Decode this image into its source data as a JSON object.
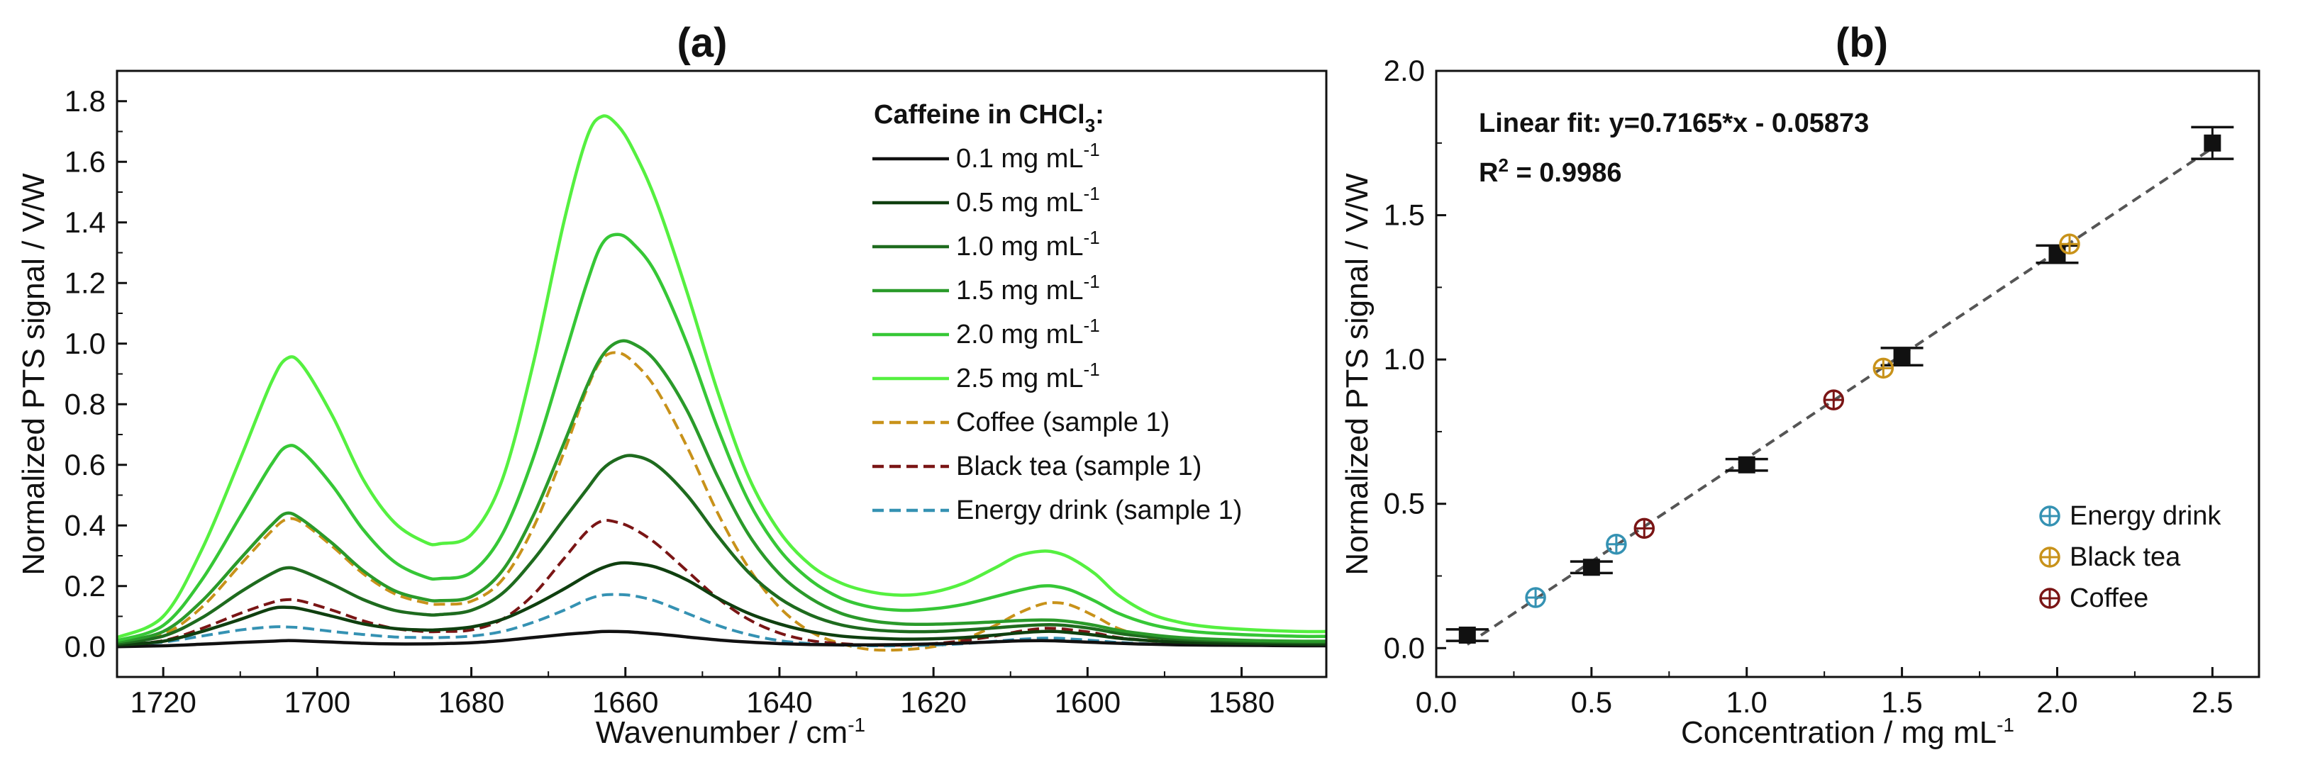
{
  "colors": {
    "c0_1": "#111111",
    "c0_5": "#0f3f0f",
    "c1_0": "#1e6b1e",
    "c1_5": "#2a9a2a",
    "c2_0": "#36c736",
    "c2_5": "#55f040",
    "coffee": "#c8921a",
    "black_tea": "#7a1515",
    "energy": "#3592b3",
    "axis": "#111111",
    "fit": "#555555"
  },
  "chart_data": [
    {
      "panel": "(a)",
      "type": "line",
      "title": "(a)",
      "xlabel": "Wavenumber / cm",
      "xlabel_sup": "-1",
      "ylabel": "Normalized PTS signal / V/W",
      "xlim": [
        1726,
        1569
      ],
      "ylim": [
        -0.1,
        1.9
      ],
      "x_reversed": true,
      "xticks": [
        1720,
        1700,
        1680,
        1660,
        1640,
        1620,
        1600,
        1580
      ],
      "yticks": [
        0.0,
        0.2,
        0.4,
        0.6,
        0.8,
        1.0,
        1.2,
        1.4,
        1.6,
        1.8
      ],
      "legend_title": "Caffeine in CHCl",
      "legend_title_sub": "3",
      "legend_title_tail": ":",
      "legend_position": "top-right",
      "x": [
        1726,
        1720,
        1715,
        1710,
        1706,
        1704,
        1702,
        1698,
        1694,
        1690,
        1686,
        1684,
        1680,
        1676,
        1672,
        1668,
        1665,
        1663,
        1661,
        1659,
        1656,
        1652,
        1648,
        1644,
        1640,
        1636,
        1632,
        1628,
        1624,
        1620,
        1616,
        1612,
        1609,
        1606,
        1604,
        1602,
        1599,
        1596,
        1592,
        1588,
        1584,
        1578,
        1572,
        1569
      ],
      "series": [
        {
          "name": "0.1 mg mL",
          "sup": "-1",
          "style": "solid",
          "color_key": "c0_1",
          "values": [
            0.0,
            0.003,
            0.008,
            0.014,
            0.018,
            0.02,
            0.019,
            0.015,
            0.011,
            0.009,
            0.009,
            0.01,
            0.013,
            0.02,
            0.03,
            0.04,
            0.046,
            0.05,
            0.05,
            0.048,
            0.042,
            0.032,
            0.022,
            0.015,
            0.01,
            0.007,
            0.006,
            0.006,
            0.007,
            0.009,
            0.012,
            0.016,
            0.019,
            0.02,
            0.019,
            0.017,
            0.014,
            0.011,
            0.008,
            0.006,
            0.005,
            0.004,
            0.003,
            0.003
          ]
        },
        {
          "name": "0.5 mg mL",
          "sup": "-1",
          "style": "solid",
          "color_key": "c0_5",
          "values": [
            0.005,
            0.018,
            0.05,
            0.09,
            0.125,
            0.13,
            0.124,
            0.1,
            0.075,
            0.06,
            0.055,
            0.056,
            0.065,
            0.09,
            0.135,
            0.19,
            0.235,
            0.26,
            0.275,
            0.275,
            0.262,
            0.22,
            0.16,
            0.11,
            0.075,
            0.05,
            0.035,
            0.028,
            0.025,
            0.026,
            0.03,
            0.038,
            0.045,
            0.05,
            0.05,
            0.046,
            0.038,
            0.028,
            0.02,
            0.015,
            0.012,
            0.01,
            0.008,
            0.008
          ]
        },
        {
          "name": "1.0 mg mL",
          "sup": "-1",
          "style": "solid",
          "color_key": "c1_0",
          "values": [
            0.01,
            0.035,
            0.095,
            0.18,
            0.24,
            0.26,
            0.25,
            0.205,
            0.155,
            0.12,
            0.106,
            0.106,
            0.12,
            0.175,
            0.285,
            0.42,
            0.52,
            0.585,
            0.62,
            0.63,
            0.6,
            0.5,
            0.365,
            0.245,
            0.16,
            0.105,
            0.072,
            0.056,
            0.05,
            0.05,
            0.055,
            0.062,
            0.068,
            0.072,
            0.072,
            0.068,
            0.058,
            0.044,
            0.032,
            0.024,
            0.02,
            0.016,
            0.014,
            0.014
          ]
        },
        {
          "name": "1.5 mg mL",
          "sup": "-1",
          "style": "solid",
          "color_key": "c1_5",
          "values": [
            0.015,
            0.05,
            0.15,
            0.29,
            0.4,
            0.44,
            0.42,
            0.34,
            0.25,
            0.185,
            0.156,
            0.152,
            0.165,
            0.25,
            0.43,
            0.67,
            0.86,
            0.96,
            1.005,
            1.0,
            0.94,
            0.78,
            0.56,
            0.37,
            0.24,
            0.16,
            0.11,
            0.085,
            0.075,
            0.074,
            0.077,
            0.082,
            0.086,
            0.088,
            0.087,
            0.082,
            0.07,
            0.054,
            0.04,
            0.03,
            0.025,
            0.02,
            0.018,
            0.018
          ]
        },
        {
          "name": "2.0 mg mL",
          "sup": "-1",
          "style": "solid",
          "color_key": "c2_0",
          "values": [
            0.02,
            0.07,
            0.22,
            0.43,
            0.6,
            0.66,
            0.645,
            0.53,
            0.385,
            0.28,
            0.23,
            0.225,
            0.245,
            0.37,
            0.62,
            0.95,
            1.2,
            1.33,
            1.36,
            1.33,
            1.23,
            1.0,
            0.72,
            0.48,
            0.32,
            0.22,
            0.16,
            0.13,
            0.12,
            0.125,
            0.14,
            0.165,
            0.185,
            0.2,
            0.198,
            0.185,
            0.15,
            0.11,
            0.075,
            0.055,
            0.045,
            0.038,
            0.034,
            0.034
          ]
        },
        {
          "name": "2.5 mg mL",
          "sup": "-1",
          "style": "solid",
          "color_key": "c2_5",
          "values": [
            0.03,
            0.1,
            0.32,
            0.62,
            0.87,
            0.95,
            0.93,
            0.76,
            0.55,
            0.41,
            0.345,
            0.34,
            0.37,
            0.55,
            0.93,
            1.4,
            1.68,
            1.75,
            1.72,
            1.64,
            1.47,
            1.17,
            0.84,
            0.56,
            0.38,
            0.27,
            0.21,
            0.18,
            0.17,
            0.18,
            0.21,
            0.26,
            0.3,
            0.315,
            0.31,
            0.29,
            0.24,
            0.17,
            0.11,
            0.08,
            0.065,
            0.055,
            0.05,
            0.05
          ]
        },
        {
          "name": "Coffee (sample 1)",
          "style": "dashed",
          "color_key": "coffee",
          "values": [
            0.01,
            0.04,
            0.13,
            0.27,
            0.38,
            0.42,
            0.41,
            0.33,
            0.24,
            0.175,
            0.145,
            0.14,
            0.15,
            0.22,
            0.39,
            0.64,
            0.85,
            0.95,
            0.97,
            0.94,
            0.85,
            0.66,
            0.44,
            0.26,
            0.13,
            0.05,
            0.01,
            -0.01,
            -0.01,
            0.0,
            0.025,
            0.07,
            0.11,
            0.14,
            0.145,
            0.135,
            0.1,
            0.06,
            0.03,
            0.015,
            0.01,
            0.008,
            0.005,
            0.005
          ]
        },
        {
          "name": "Black tea (sample 1)",
          "style": "dashed",
          "color_key": "black_tea",
          "values": [
            0.005,
            0.02,
            0.06,
            0.11,
            0.145,
            0.155,
            0.15,
            0.12,
            0.085,
            0.06,
            0.05,
            0.05,
            0.055,
            0.09,
            0.17,
            0.29,
            0.38,
            0.415,
            0.41,
            0.39,
            0.34,
            0.25,
            0.16,
            0.09,
            0.045,
            0.02,
            0.01,
            0.005,
            0.005,
            0.01,
            0.02,
            0.035,
            0.05,
            0.06,
            0.06,
            0.055,
            0.045,
            0.03,
            0.02,
            0.01,
            0.008,
            0.006,
            0.004,
            0.004
          ]
        },
        {
          "name": "Energy drink (sample 1)",
          "style": "dashed",
          "color_key": "energy",
          "values": [
            0.005,
            0.015,
            0.035,
            0.055,
            0.065,
            0.065,
            0.062,
            0.05,
            0.04,
            0.032,
            0.03,
            0.03,
            0.035,
            0.05,
            0.08,
            0.12,
            0.155,
            0.17,
            0.172,
            0.168,
            0.15,
            0.11,
            0.07,
            0.04,
            0.02,
            0.01,
            0.005,
            0.003,
            0.003,
            0.005,
            0.01,
            0.018,
            0.024,
            0.028,
            0.028,
            0.025,
            0.02,
            0.014,
            0.009,
            0.006,
            0.005,
            0.004,
            0.004,
            0.004
          ]
        }
      ]
    },
    {
      "panel": "(b)",
      "type": "scatter",
      "title": "(b)",
      "xlabel": "Concentration / mg mL",
      "xlabel_sup": "-1",
      "ylabel": "Normalized PTS signal / V/W",
      "xlim": [
        0.0,
        2.65
      ],
      "ylim": [
        -0.1,
        2.0
      ],
      "xticks": [
        0.0,
        0.5,
        1.0,
        1.5,
        2.0,
        2.5
      ],
      "yticks": [
        0.0,
        0.5,
        1.0,
        1.5,
        2.0
      ],
      "fit_text": "Linear fit: y=0.7165*x - 0.05873",
      "r2_label": "R",
      "r2_sup": "2",
      "r2_value": " = 0.9986",
      "fit": {
        "slope": 0.7165,
        "intercept": -0.05873,
        "x_range": [
          0.1,
          2.5
        ]
      },
      "legend_position": "bottom-right",
      "calibration": [
        {
          "x": 0.1,
          "y": 0.045,
          "err": 0.02
        },
        {
          "x": 0.5,
          "y": 0.28,
          "err": 0.02
        },
        {
          "x": 1.0,
          "y": 0.635,
          "err": 0.02
        },
        {
          "x": 1.5,
          "y": 1.01,
          "err": 0.03
        },
        {
          "x": 2.0,
          "y": 1.365,
          "err": 0.03
        },
        {
          "x": 2.5,
          "y": 1.75,
          "err": 0.055
        }
      ],
      "samples": [
        {
          "name": "Energy drink",
          "color_key": "energy",
          "points": [
            [
              0.32,
              0.175
            ],
            [
              0.58,
              0.36
            ]
          ]
        },
        {
          "name": "Black tea",
          "color_key": "coffee",
          "points": [
            [
              1.44,
              0.97
            ],
            [
              2.04,
              1.4
            ]
          ]
        },
        {
          "name": "Coffee",
          "color_key": "black_tea",
          "points": [
            [
              0.67,
              0.415
            ],
            [
              1.28,
              0.86
            ]
          ]
        }
      ]
    }
  ]
}
